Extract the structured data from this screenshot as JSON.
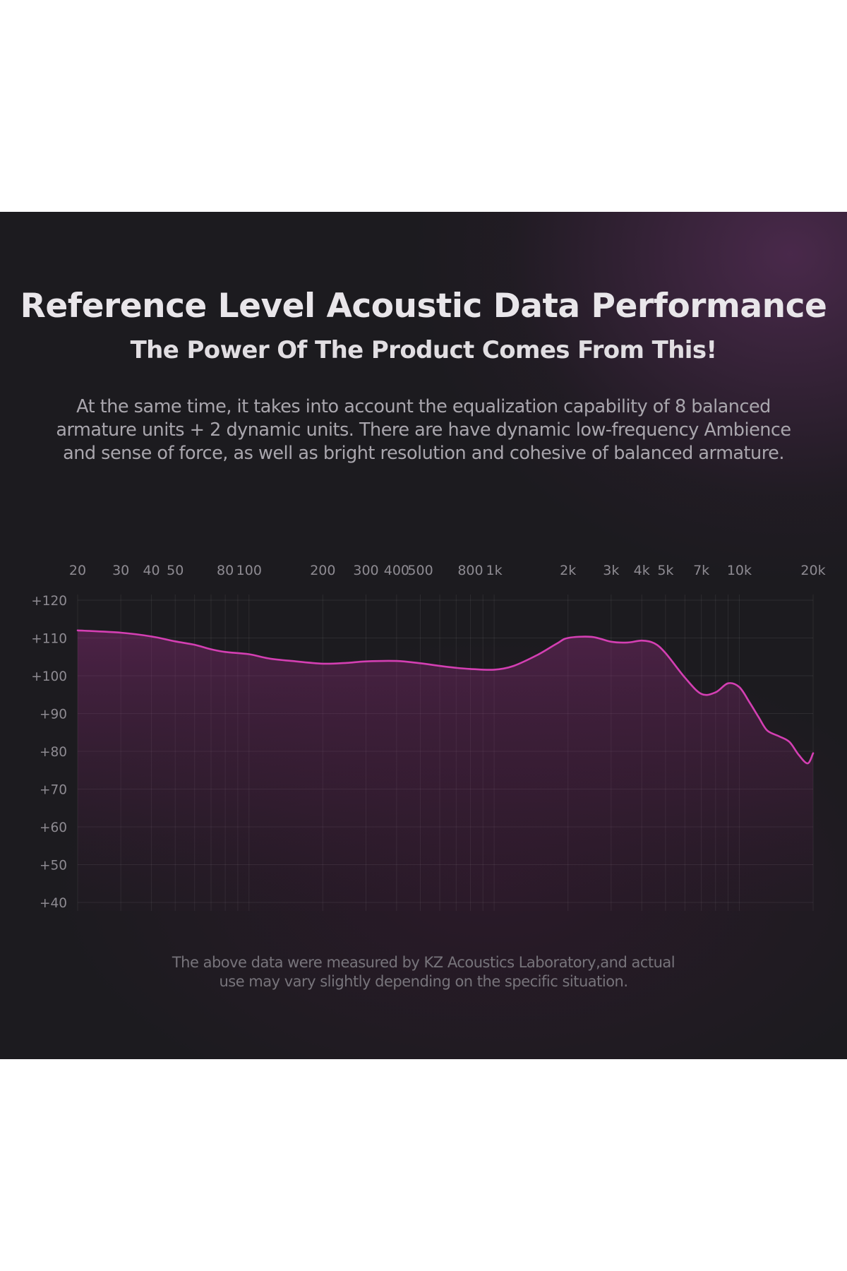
{
  "header": {
    "title": "Reference Level Acoustic Data Performance",
    "subtitle": "The Power Of The Product Comes From This!",
    "description_lines": [
      "At the same time, it takes into account the equalization capability of 8 balanced",
      "armature units + 2 dynamic units. There are have dynamic low-frequency Ambience",
      "and sense of force, as well as bright resolution and cohesive of balanced armature."
    ]
  },
  "footnote": {
    "lines": [
      "The above data were measured by KZ Acoustics Laboratory,and actual",
      "use may vary slightly depending on the specific situation."
    ]
  },
  "chart_data": {
    "type": "line",
    "x_scale": "log",
    "xlim": [
      20,
      20000
    ],
    "ylim": [
      40,
      120
    ],
    "x_ticks": [
      {
        "value": 20,
        "label": "20"
      },
      {
        "value": 30,
        "label": "30"
      },
      {
        "value": 40,
        "label": "40"
      },
      {
        "value": 50,
        "label": "50"
      },
      {
        "value": 80,
        "label": "80"
      },
      {
        "value": 100,
        "label": "100"
      },
      {
        "value": 200,
        "label": "200"
      },
      {
        "value": 300,
        "label": "300"
      },
      {
        "value": 400,
        "label": "400"
      },
      {
        "value": 500,
        "label": "500"
      },
      {
        "value": 800,
        "label": "800"
      },
      {
        "value": 1000,
        "label": "1k"
      },
      {
        "value": 2000,
        "label": "2k"
      },
      {
        "value": 3000,
        "label": "3k"
      },
      {
        "value": 4000,
        "label": "4k"
      },
      {
        "value": 5000,
        "label": "5k"
      },
      {
        "value": 7000,
        "label": "7k"
      },
      {
        "value": 10000,
        "label": "10k"
      },
      {
        "value": 20000,
        "label": "20k"
      }
    ],
    "minor_x_gridlines": [
      60,
      70,
      90,
      600,
      700,
      900,
      6000,
      8000,
      9000
    ],
    "y_ticks": [
      {
        "value": 120,
        "label": "+120"
      },
      {
        "value": 110,
        "label": "+110"
      },
      {
        "value": 100,
        "label": "+100"
      },
      {
        "value": 90,
        "label": "+90"
      },
      {
        "value": 80,
        "label": "+80"
      },
      {
        "value": 70,
        "label": "+70"
      },
      {
        "value": 60,
        "label": "+60"
      },
      {
        "value": 50,
        "label": "+50"
      },
      {
        "value": 40,
        "label": "+40"
      }
    ],
    "grid": true,
    "legend": "none",
    "series": [
      {
        "color": "#d43fb3",
        "points": [
          [
            20,
            112
          ],
          [
            30,
            111.4
          ],
          [
            40,
            110.4
          ],
          [
            50,
            109.1
          ],
          [
            60,
            108.2
          ],
          [
            70,
            107
          ],
          [
            80,
            106.3
          ],
          [
            100,
            105.7
          ],
          [
            120,
            104.6
          ],
          [
            150,
            103.9
          ],
          [
            200,
            103.2
          ],
          [
            250,
            103.4
          ],
          [
            300,
            103.8
          ],
          [
            400,
            103.9
          ],
          [
            500,
            103.3
          ],
          [
            600,
            102.6
          ],
          [
            700,
            102.1
          ],
          [
            800,
            101.8
          ],
          [
            1000,
            101.6
          ],
          [
            1200,
            102.6
          ],
          [
            1500,
            105.5
          ],
          [
            1800,
            108.5
          ],
          [
            2000,
            110
          ],
          [
            2500,
            110.3
          ],
          [
            3000,
            109
          ],
          [
            3500,
            108.8
          ],
          [
            4000,
            109.3
          ],
          [
            4500,
            108.6
          ],
          [
            5000,
            106
          ],
          [
            6000,
            99.5
          ],
          [
            7000,
            95.2
          ],
          [
            8000,
            95.6
          ],
          [
            9000,
            98
          ],
          [
            10000,
            97
          ],
          [
            11000,
            93
          ],
          [
            12000,
            89
          ],
          [
            13000,
            85.5
          ],
          [
            14500,
            84
          ],
          [
            16000,
            82.5
          ],
          [
            17500,
            79
          ],
          [
            19000,
            76.8
          ],
          [
            20000,
            79.5
          ]
        ]
      }
    ]
  },
  "colors": {
    "curve": "#d43fb3",
    "fill_top": "#9b2d86",
    "background": "#1c1b1f"
  }
}
